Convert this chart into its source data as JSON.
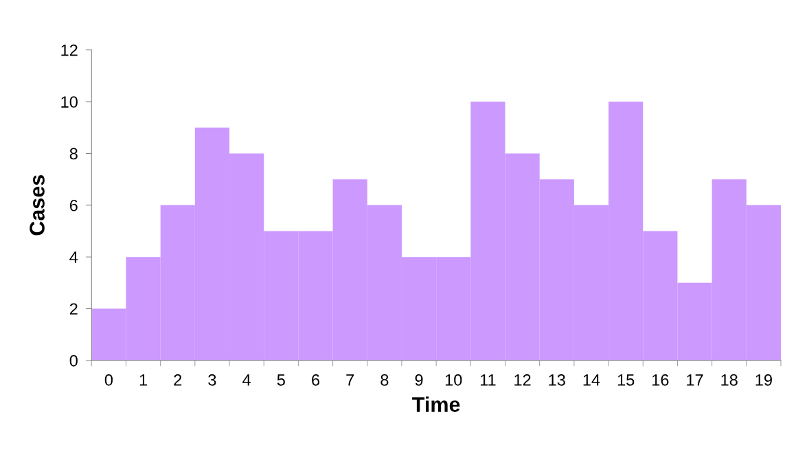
{
  "chart_data": {
    "type": "bar",
    "xlabel": "Time",
    "ylabel": "Cases",
    "categories": [
      "0",
      "1",
      "2",
      "3",
      "4",
      "5",
      "6",
      "7",
      "8",
      "9",
      "10",
      "11",
      "12",
      "13",
      "14",
      "15",
      "16",
      "17",
      "18",
      "19"
    ],
    "values": [
      2,
      4,
      6,
      9,
      8,
      5,
      5,
      7,
      6,
      4,
      4,
      10,
      8,
      7,
      6,
      10,
      5,
      3,
      7,
      6
    ],
    "color": "#cc99ff",
    "ylim": [
      0,
      12
    ],
    "yticks": [
      0,
      2,
      4,
      6,
      8,
      10,
      12
    ],
    "grid": false,
    "legend": false
  }
}
